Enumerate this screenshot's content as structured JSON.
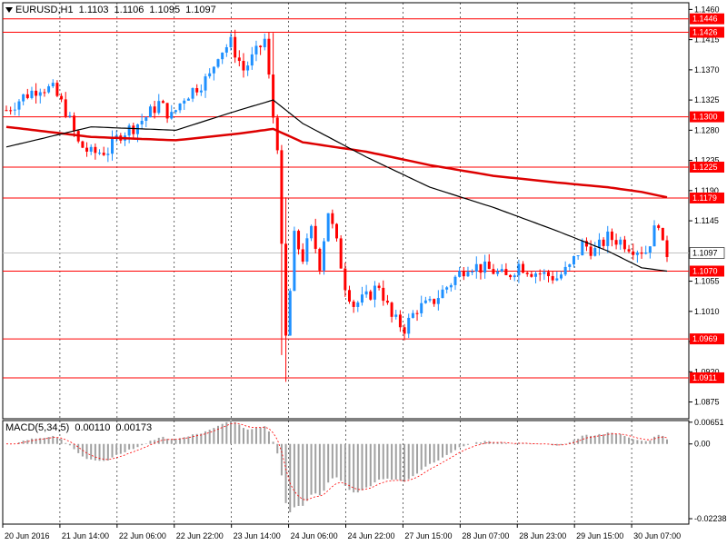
{
  "header": {
    "symbol": "EURUSD,H1",
    "open": "1.1103",
    "high": "1.1106",
    "low": "1.1095",
    "close": "1.1097"
  },
  "macd_header": {
    "label": "MACD(5,34,5)",
    "main": "0.00110",
    "signal": "0.00173"
  },
  "colors": {
    "bull": "#1e90ff",
    "bear": "#ff0000",
    "ma_fast": "#000000",
    "ma_slow": "#dd0000",
    "level": "#ff0000",
    "hist": "#a0a0a0"
  },
  "chart_data": [
    {
      "type": "candlestick",
      "symbol": "EURUSD",
      "timeframe": "H1",
      "price_axis_ticks": [
        "1.1460",
        "1.1415",
        "1.1370",
        "1.1325",
        "1.1280",
        "1.1235",
        "1.1190",
        "1.1145",
        "1.1100",
        "1.1055",
        "1.1010",
        "1.0965",
        "1.0920",
        "1.0875"
      ],
      "ylim": [
        1.085,
        1.147
      ],
      "time_axis_labels": [
        "20 Jun 2016",
        "21 Jun 14:00",
        "22 Jun 06:00",
        "22 Jun 22:00",
        "23 Jun 14:00",
        "24 Jun 06:00",
        "24 Jun 22:00",
        "27 Jun 15:00",
        "28 Jun 07:00",
        "28 Jun 23:00",
        "29 Jun 15:00",
        "30 Jun 07:00"
      ],
      "horizontal_levels": [
        "1.1446",
        "1.1426",
        "1.1300",
        "1.1225",
        "1.1179",
        "1.1070",
        "1.0969",
        "1.0911"
      ],
      "current_price": "1.1097",
      "candles_close_path": [
        {
          "t": 0,
          "c": 1.131
        },
        {
          "t": 4,
          "c": 1.133
        },
        {
          "t": 8,
          "c": 1.1345
        },
        {
          "t": 11,
          "c": 1.134
        },
        {
          "t": 14,
          "c": 1.131
        },
        {
          "t": 17,
          "c": 1.126
        },
        {
          "t": 20,
          "c": 1.1245
        },
        {
          "t": 24,
          "c": 1.125
        },
        {
          "t": 27,
          "c": 1.1275
        },
        {
          "t": 30,
          "c": 1.1285
        },
        {
          "t": 33,
          "c": 1.13
        },
        {
          "t": 36,
          "c": 1.132
        },
        {
          "t": 39,
          "c": 1.13
        },
        {
          "t": 42,
          "c": 1.133
        },
        {
          "t": 45,
          "c": 1.1345
        },
        {
          "t": 48,
          "c": 1.136
        },
        {
          "t": 50,
          "c": 1.1395
        },
        {
          "t": 53,
          "c": 1.141
        },
        {
          "t": 56,
          "c": 1.137
        },
        {
          "t": 59,
          "c": 1.1395
        },
        {
          "t": 61,
          "c": 1.1415
        },
        {
          "t": 63,
          "c": 1.13
        },
        {
          "t": 64,
          "c": 1.126
        },
        {
          "t": 65,
          "c": 1.11
        },
        {
          "t": 66,
          "c": 1.097
        },
        {
          "t": 67,
          "c": 1.104
        },
        {
          "t": 68,
          "c": 1.112
        },
        {
          "t": 70,
          "c": 1.109
        },
        {
          "t": 72,
          "c": 1.113
        },
        {
          "t": 74,
          "c": 1.108
        },
        {
          "t": 76,
          "c": 1.116
        },
        {
          "t": 78,
          "c": 1.111
        },
        {
          "t": 80,
          "c": 1.105
        },
        {
          "t": 82,
          "c": 1.102
        },
        {
          "t": 85,
          "c": 1.103
        },
        {
          "t": 88,
          "c": 1.105
        },
        {
          "t": 91,
          "c": 1.1
        },
        {
          "t": 94,
          "c": 1.0985
        },
        {
          "t": 97,
          "c": 1.1015
        },
        {
          "t": 100,
          "c": 1.102
        },
        {
          "t": 103,
          "c": 1.104
        },
        {
          "t": 106,
          "c": 1.106
        },
        {
          "t": 109,
          "c": 1.108
        },
        {
          "t": 112,
          "c": 1.1075
        },
        {
          "t": 115,
          "c": 1.107
        },
        {
          "t": 118,
          "c": 1.106
        },
        {
          "t": 121,
          "c": 1.108
        },
        {
          "t": 124,
          "c": 1.107
        },
        {
          "t": 127,
          "c": 1.1065
        },
        {
          "t": 130,
          "c": 1.106
        },
        {
          "t": 133,
          "c": 1.1075
        },
        {
          "t": 136,
          "c": 1.111
        },
        {
          "t": 139,
          "c": 1.11
        },
        {
          "t": 142,
          "c": 1.112
        },
        {
          "t": 145,
          "c": 1.1115
        },
        {
          "t": 148,
          "c": 1.1105
        },
        {
          "t": 151,
          "c": 1.11
        },
        {
          "t": 153,
          "c": 1.113
        },
        {
          "t": 154,
          "c": 1.1145
        },
        {
          "t": 155,
          "c": 1.1105
        },
        {
          "t": 156,
          "c": 1.1097
        }
      ],
      "ma_fast": [
        {
          "t": 0,
          "v": 1.1255
        },
        {
          "t": 20,
          "v": 1.1285
        },
        {
          "t": 40,
          "v": 1.128
        },
        {
          "t": 55,
          "v": 1.131
        },
        {
          "t": 63,
          "v": 1.1325
        },
        {
          "t": 70,
          "v": 1.129
        },
        {
          "t": 85,
          "v": 1.124
        },
        {
          "t": 100,
          "v": 1.1195
        },
        {
          "t": 115,
          "v": 1.1165
        },
        {
          "t": 130,
          "v": 1.113
        },
        {
          "t": 142,
          "v": 1.11
        },
        {
          "t": 150,
          "v": 1.1075
        },
        {
          "t": 156,
          "v": 1.107
        }
      ],
      "ma_slow": [
        {
          "t": 0,
          "v": 1.1285
        },
        {
          "t": 20,
          "v": 1.127
        },
        {
          "t": 40,
          "v": 1.1265
        },
        {
          "t": 55,
          "v": 1.1275
        },
        {
          "t": 63,
          "v": 1.1282
        },
        {
          "t": 70,
          "v": 1.1262
        },
        {
          "t": 85,
          "v": 1.1248
        },
        {
          "t": 100,
          "v": 1.1228
        },
        {
          "t": 115,
          "v": 1.1212
        },
        {
          "t": 130,
          "v": 1.1202
        },
        {
          "t": 142,
          "v": 1.1195
        },
        {
          "t": 150,
          "v": 1.1188
        },
        {
          "t": 156,
          "v": 1.118
        }
      ]
    },
    {
      "type": "bar",
      "indicator": "MACD(5,34,5)",
      "axis_ticks": [
        "0.00651",
        "0.00",
        "-0.02238"
      ],
      "ylim": [
        -0.024,
        0.007
      ]
    }
  ]
}
